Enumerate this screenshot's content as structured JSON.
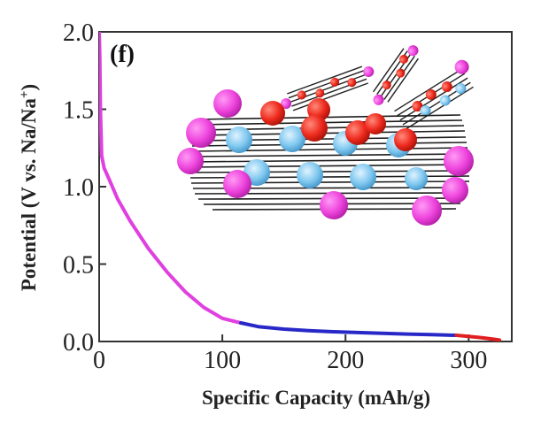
{
  "chart_data": {
    "type": "line",
    "panel_label": "(f)",
    "xlabel": "Specific Capacity (mAh/g)",
    "ylabel_main": "Potential (V vs. Na/Na",
    "ylabel_sup": "+",
    "ylabel_close": ")",
    "xlim": [
      0,
      335
    ],
    "ylim": [
      0,
      2.0
    ],
    "xticks": [
      0,
      100,
      200,
      300
    ],
    "xtick_labels": [
      "0",
      "100",
      "200",
      "300"
    ],
    "yticks": [
      0,
      0.5,
      1.0,
      1.5,
      2.0
    ],
    "ytick_labels": [
      "0.0",
      "0.5",
      "1.0",
      "1.5",
      "2.0"
    ],
    "series": [
      {
        "color": "#e040e0",
        "x": [
          0,
          0.5,
          1,
          2,
          4,
          8,
          15,
          25,
          40,
          55,
          70,
          85,
          100,
          115
        ],
        "y": [
          2.0,
          1.85,
          1.5,
          1.2,
          1.12,
          1.05,
          0.92,
          0.78,
          0.6,
          0.45,
          0.32,
          0.22,
          0.15,
          0.12
        ]
      },
      {
        "color": "#2828c8",
        "x": [
          115,
          130,
          150,
          170,
          190,
          210,
          230,
          250,
          270,
          290
        ],
        "y": [
          0.12,
          0.095,
          0.08,
          0.07,
          0.063,
          0.058,
          0.053,
          0.048,
          0.044,
          0.04
        ]
      },
      {
        "color": "#e02020",
        "x": [
          290,
          300,
          310,
          320,
          325
        ],
        "y": [
          0.04,
          0.033,
          0.025,
          0.015,
          0.01
        ]
      }
    ]
  }
}
